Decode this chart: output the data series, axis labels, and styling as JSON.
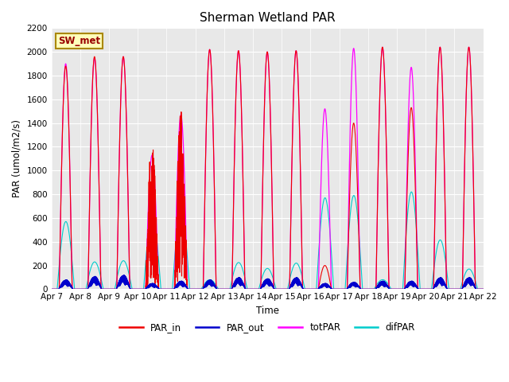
{
  "title": "Sherman Wetland PAR",
  "xlabel": "Time",
  "ylabel": "PAR (umol/m2/s)",
  "ylim": [
    0,
    2200
  ],
  "yticks": [
    0,
    200,
    400,
    600,
    800,
    1000,
    1200,
    1400,
    1600,
    1800,
    2000,
    2200
  ],
  "date_labels": [
    "Apr 7",
    "Apr 8",
    "Apr 9",
    "Apr 10",
    "Apr 11",
    "Apr 12",
    "Apr 13",
    "Apr 14",
    "Apr 15",
    "Apr 16",
    "Apr 17",
    "Apr 18",
    "Apr 19",
    "Apr 20",
    "Apr 21",
    "Apr 22"
  ],
  "colors": {
    "PAR_in": "#ee0000",
    "PAR_out": "#0000cc",
    "totPAR": "#ff00ff",
    "difPAR": "#00cccc"
  },
  "site_label": "SW_met",
  "background_color": "#e8e8e8",
  "n_days": 15,
  "day_peaks_PAR_in": [
    1880,
    1960,
    1960,
    1280,
    1500,
    2020,
    2010,
    2000,
    2010,
    200,
    1400,
    2040,
    1530,
    2040,
    2040
  ],
  "day_peaks_totPAR": [
    1900,
    1950,
    1960,
    1130,
    1470,
    2020,
    2010,
    2000,
    2010,
    1520,
    2030,
    2040,
    1870,
    2040,
    2040
  ],
  "day_peaks_difPAR": [
    570,
    230,
    240,
    620,
    650,
    80,
    225,
    175,
    220,
    770,
    790,
    80,
    820,
    415,
    170
  ],
  "day_peaks_PAR_out": [
    80,
    110,
    120,
    50,
    70,
    80,
    100,
    90,
    100,
    50,
    60,
    70,
    70,
    100,
    100
  ],
  "cloudy_days": [
    3,
    4
  ],
  "low_day": 9
}
